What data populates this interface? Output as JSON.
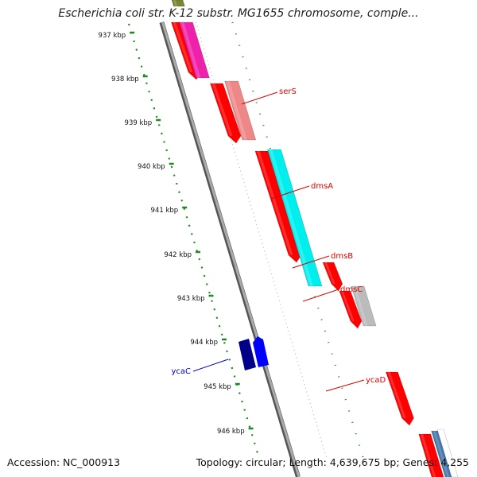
{
  "title": "Escherichia coli str. K-12 substr. MG1655 chromosome, comple...",
  "footer": {
    "accession": "Accession: NC_000913",
    "summary": "Topology: circular; Length: 4,639,675 bp; Genes: 4,255"
  },
  "ruler": {
    "labels": [
      "937 kbp",
      "938 kbp",
      "939 kbp",
      "940 kbp",
      "941 kbp",
      "942 kbp",
      "943 kbp",
      "944 kbp",
      "945 kbp",
      "946 kbp"
    ]
  },
  "gene_labels": [
    {
      "text": "serS",
      "color": "#dd0000"
    },
    {
      "text": "dmsA",
      "color": "#dd0000"
    },
    {
      "text": "dmsB",
      "color": "#dd0000"
    },
    {
      "text": "dmsC",
      "color": "#dd0000"
    },
    {
      "text": "ycaD",
      "color": "#dd0000"
    },
    {
      "text": "ycaC",
      "color": "#0000cc"
    }
  ],
  "colors": {
    "cds": "#ff0000",
    "backbone": "#888888",
    "ruler": "#228822",
    "feature_magenta": "#ee22aa",
    "feature_salmon": "#ee8888",
    "feature_cyan": "#00eeee",
    "feature_grey": "#bbbbbb",
    "feature_navy": "#000088",
    "feature_blue": "#0000ff",
    "feature_steel": "#4477aa",
    "feature_olive": "#778833"
  }
}
